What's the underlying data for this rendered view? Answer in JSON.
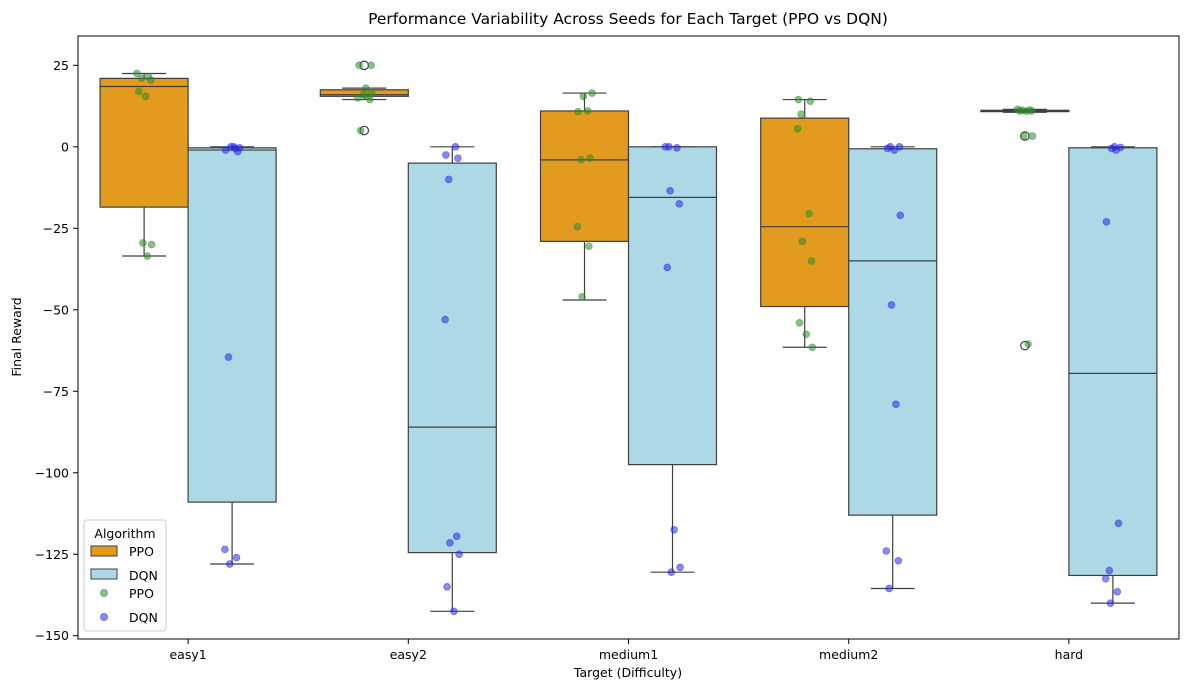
{
  "chart_data": {
    "type": "box",
    "title": "Performance Variability Across Seeds for Each Target (PPO vs DQN)",
    "xlabel": "Target (Difficulty)",
    "ylabel": "Final Reward",
    "categories": [
      "easy1",
      "easy2",
      "medium1",
      "medium2",
      "hard"
    ],
    "ylim": [
      -151,
      34
    ],
    "yticks": [
      25,
      0,
      -25,
      -50,
      -75,
      -100,
      -125,
      -150
    ],
    "ytick_labels": [
      "25",
      "0",
      "−25",
      "−50",
      "−75",
      "−100",
      "−125",
      "−150"
    ],
    "grid": false,
    "legend": {
      "title": "Algorithm",
      "placement": "lower-left",
      "entries": [
        "PPO",
        "DQN",
        "PPO",
        "DQN"
      ]
    },
    "series": [
      {
        "name": "PPO",
        "box_color": "#e39b1f",
        "point_color": "#2e8b2e",
        "boxes": [
          {
            "q1": -18.5,
            "median": 18.5,
            "q3": 21,
            "whisker_low": -33.5,
            "whisker_high": 22.5,
            "outliers": []
          },
          {
            "q1": 15.5,
            "median": 16,
            "q3": 17.5,
            "whisker_low": 14.5,
            "whisker_high": 18,
            "outliers": [
              25,
              5
            ]
          },
          {
            "q1": -29,
            "median": -4,
            "q3": 11,
            "whisker_low": -47,
            "whisker_high": 16.5,
            "outliers": []
          },
          {
            "q1": -49,
            "median": -24.5,
            "q3": 8.8,
            "whisker_low": -61.5,
            "whisker_high": 14.5,
            "outliers": []
          },
          {
            "q1": 10.8,
            "median": 11,
            "q3": 11.2,
            "whisker_low": 10.6,
            "whisker_high": 11.5,
            "outliers": [
              3.3,
              -61
            ]
          }
        ],
        "points": [
          [
            22.5,
            21.5,
            21,
            20.5,
            17,
            15.5,
            -30,
            -29.5,
            -33.5
          ],
          [
            25,
            25,
            18,
            16.5,
            16,
            15.5,
            15,
            14.5,
            5
          ],
          [
            16.5,
            15.5,
            11,
            10.8,
            -3.5,
            -4,
            -24.5,
            -30.5,
            -46
          ],
          [
            14.5,
            14,
            10,
            5.5,
            -20.5,
            -29,
            -35,
            -54,
            -57.5,
            -61.5
          ],
          [
            11.5,
            11.3,
            11.2,
            11,
            11,
            10.9,
            3.3,
            3.3,
            -60.5
          ]
        ]
      },
      {
        "name": "DQN",
        "box_color": "#add8e6",
        "point_color": "#2a2ae6",
        "boxes": [
          {
            "q1": -109,
            "median": -1,
            "q3": -0.3,
            "whisker_low": -128,
            "whisker_high": 0,
            "outliers": []
          },
          {
            "q1": -124.5,
            "median": -86,
            "q3": -5,
            "whisker_low": -142.5,
            "whisker_high": 0,
            "outliers": []
          },
          {
            "q1": -97.5,
            "median": -15.5,
            "q3": 0,
            "whisker_low": -130.5,
            "whisker_high": 0,
            "outliers": []
          },
          {
            "q1": -113,
            "median": -35,
            "q3": -0.6,
            "whisker_low": -135.5,
            "whisker_high": 0,
            "outliers": []
          },
          {
            "q1": -131.5,
            "median": -69.5,
            "q3": -0.3,
            "whisker_low": -140,
            "whisker_high": 0,
            "outliers": []
          }
        ],
        "points": [
          [
            0,
            -0.3,
            0,
            -0.5,
            -1,
            -1.5,
            -64.5,
            -123.5,
            -126,
            -128
          ],
          [
            0,
            -2.5,
            -3.5,
            -10,
            -53,
            -119.5,
            -121.5,
            -125,
            -135,
            -142.5
          ],
          [
            0,
            0,
            -0.3,
            -13.5,
            -17.5,
            -37,
            -117.5,
            -129,
            -130.5
          ],
          [
            0,
            0,
            -0.5,
            -1,
            -21,
            -48.5,
            -79,
            -124,
            -127,
            -135.5
          ],
          [
            0,
            -0.2,
            -0.5,
            -1,
            -23,
            -115.5,
            -130,
            -132.5,
            -136.5,
            -140
          ]
        ]
      }
    ]
  }
}
